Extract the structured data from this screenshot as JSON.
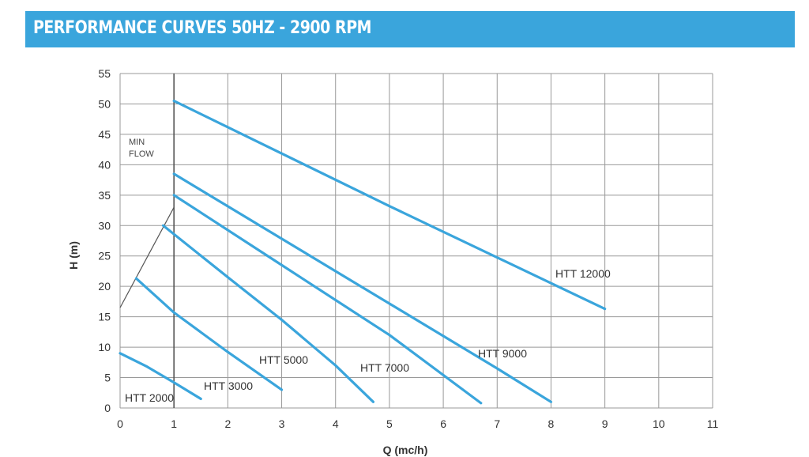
{
  "header": {
    "title": "PERFORMANCE CURVES 50HZ - 2900 RPM"
  },
  "colors": {
    "banner": "#3aa5dc",
    "curve": "#3aa5dc",
    "grid": "#999999",
    "min_flow_line": "#555555"
  },
  "chart_data": {
    "type": "line",
    "xlabel": "Q (mc/h)",
    "ylabel": "H (m)",
    "xlim": [
      0,
      11
    ],
    "ylim": [
      0,
      55
    ],
    "xticks": [
      0,
      1,
      2,
      3,
      4,
      5,
      6,
      7,
      8,
      9,
      10,
      11
    ],
    "yticks": [
      0,
      5,
      10,
      15,
      20,
      25,
      30,
      35,
      40,
      45,
      50,
      55
    ],
    "grid": true,
    "series": [
      {
        "name": "HTT 2000",
        "label": "HTT 2000",
        "x": [
          0,
          0.5,
          1,
          1.5
        ],
        "y": [
          9,
          6.8,
          4.2,
          1.5
        ]
      },
      {
        "name": "HTT 3000",
        "label": "HTT 3000",
        "x": [
          0.3,
          1,
          2,
          3
        ],
        "y": [
          21.3,
          15.7,
          9.2,
          3
        ]
      },
      {
        "name": "HTT 5000",
        "label": "HTT 5000",
        "x": [
          0.8,
          2,
          3,
          4,
          4.7
        ],
        "y": [
          30,
          21.5,
          14.5,
          7,
          1
        ]
      },
      {
        "name": "HTT 7000",
        "label": "HTT 7000",
        "x": [
          1,
          3,
          5,
          6.7
        ],
        "y": [
          35,
          23.5,
          12,
          0.8
        ]
      },
      {
        "name": "HTT 9000",
        "label": "HTT 9000",
        "x": [
          1,
          4,
          7,
          8
        ],
        "y": [
          38.5,
          22.5,
          6.5,
          1
        ]
      },
      {
        "name": "HTT 12000",
        "label": "HTT 12000",
        "x": [
          1,
          5,
          9
        ],
        "y": [
          50.5,
          33.2,
          16.3
        ]
      }
    ],
    "annotations": {
      "min_flow": {
        "lines": [
          "MIN",
          "FLOW"
        ],
        "x": 1,
        "y_from": 0,
        "y_to": 55,
        "knee_y": 33,
        "diag_start": [
          0,
          16.5
        ]
      }
    }
  }
}
